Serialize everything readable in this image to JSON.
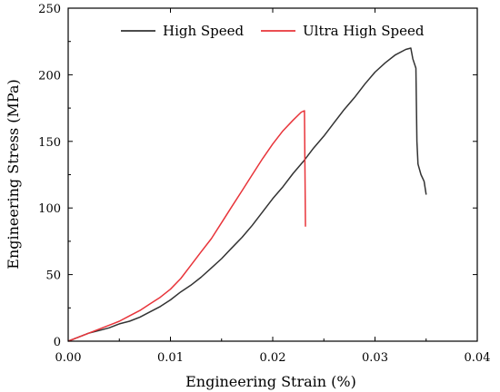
{
  "chart_data": {
    "type": "line",
    "xlabel": "Engineering Strain (%)",
    "ylabel": "Engineering Stress (MPa)",
    "xlim": [
      0,
      0.04
    ],
    "ylim": [
      0,
      250
    ],
    "x_ticks": [
      "0.00",
      "0.01",
      "0.02",
      "0.03",
      "0.04"
    ],
    "y_ticks": [
      "0",
      "50",
      "100",
      "150",
      "200",
      "250"
    ],
    "x_tick_values": [
      0,
      0.01,
      0.02,
      0.03,
      0.04
    ],
    "y_tick_values": [
      0,
      50,
      100,
      150,
      200,
      250
    ],
    "grid": false,
    "legend_position": "top-right",
    "series": [
      {
        "name": "High Speed",
        "color": "#333333",
        "points": [
          [
            0,
            0
          ],
          [
            0.001,
            3
          ],
          [
            0.002,
            6
          ],
          [
            0.003,
            8
          ],
          [
            0.004,
            10
          ],
          [
            0.005,
            13
          ],
          [
            0.006,
            15
          ],
          [
            0.007,
            18
          ],
          [
            0.008,
            22
          ],
          [
            0.009,
            26
          ],
          [
            0.01,
            31
          ],
          [
            0.011,
            37
          ],
          [
            0.012,
            42
          ],
          [
            0.013,
            48
          ],
          [
            0.014,
            55
          ],
          [
            0.015,
            62
          ],
          [
            0.016,
            70
          ],
          [
            0.017,
            78
          ],
          [
            0.018,
            87
          ],
          [
            0.019,
            97
          ],
          [
            0.02,
            107
          ],
          [
            0.021,
            116
          ],
          [
            0.022,
            126
          ],
          [
            0.023,
            135
          ],
          [
            0.024,
            145
          ],
          [
            0.025,
            154
          ],
          [
            0.026,
            164
          ],
          [
            0.027,
            174
          ],
          [
            0.028,
            183
          ],
          [
            0.029,
            193
          ],
          [
            0.03,
            202
          ],
          [
            0.031,
            209
          ],
          [
            0.032,
            215
          ],
          [
            0.033,
            219
          ],
          [
            0.0335,
            220
          ],
          [
            0.0337,
            212
          ],
          [
            0.034,
            205
          ],
          [
            0.0341,
            150
          ],
          [
            0.0342,
            133
          ],
          [
            0.0345,
            125
          ],
          [
            0.0348,
            120
          ],
          [
            0.035,
            110
          ]
        ]
      },
      {
        "name": "Ultra High Speed",
        "color": "#e8343a",
        "points": [
          [
            0,
            0
          ],
          [
            0.001,
            3
          ],
          [
            0.002,
            6
          ],
          [
            0.003,
            9
          ],
          [
            0.004,
            12
          ],
          [
            0.005,
            15
          ],
          [
            0.006,
            19
          ],
          [
            0.007,
            23
          ],
          [
            0.008,
            28
          ],
          [
            0.009,
            33
          ],
          [
            0.01,
            39
          ],
          [
            0.011,
            47
          ],
          [
            0.012,
            57
          ],
          [
            0.013,
            67
          ],
          [
            0.014,
            77
          ],
          [
            0.015,
            89
          ],
          [
            0.016,
            101
          ],
          [
            0.017,
            113
          ],
          [
            0.018,
            125
          ],
          [
            0.019,
            137
          ],
          [
            0.02,
            148
          ],
          [
            0.021,
            158
          ],
          [
            0.022,
            166
          ],
          [
            0.0228,
            172
          ],
          [
            0.0231,
            173
          ],
          [
            0.0232,
            86
          ]
        ]
      }
    ]
  }
}
